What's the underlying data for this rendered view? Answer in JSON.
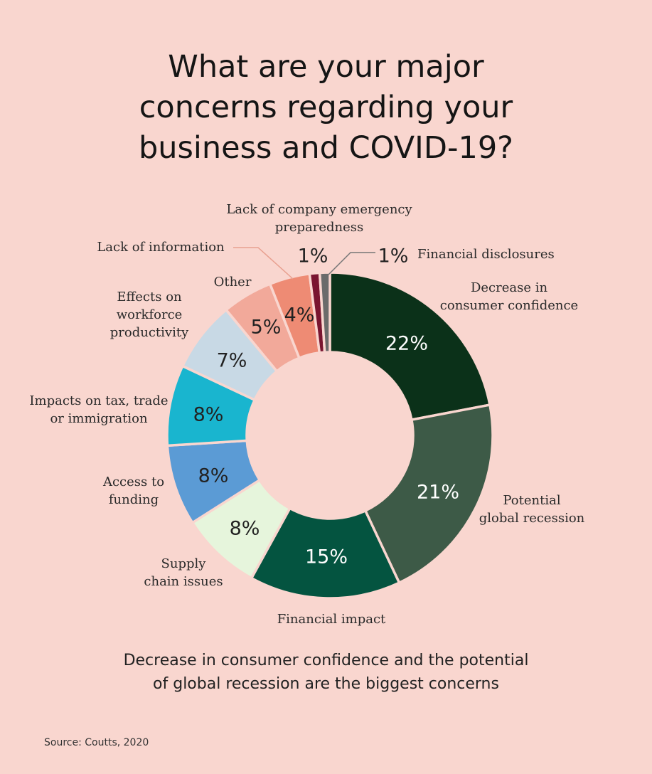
{
  "title_lines": [
    "What are your major",
    "concerns regarding your",
    "business and COVID-19?"
  ],
  "caption_lines": [
    "Decrease in consumer confidence and the potential",
    "of global recession are the biggest concerns"
  ],
  "source": "Source: Coutts, 2020",
  "colors": {
    "background": "#f9d6cf",
    "leader_line": "#e8a090",
    "leader_line_dark": "#777777"
  },
  "chart_data": {
    "type": "pie",
    "donut": true,
    "slices": [
      {
        "label_lines": [
          "Decrease in",
          "consumer confidence"
        ],
        "value": 22,
        "value_label": "22%",
        "color": "#0b3119",
        "text_color": "#ffffff"
      },
      {
        "label_lines": [
          "Potential",
          "global recession"
        ],
        "value": 21,
        "value_label": "21%",
        "color": "#3d5a47",
        "text_color": "#ffffff"
      },
      {
        "label_lines": [
          "Financial impact"
        ],
        "value": 15,
        "value_label": "15%",
        "color": "#045440",
        "text_color": "#ffffff"
      },
      {
        "label_lines": [
          "Supply",
          "chain issues"
        ],
        "value": 8,
        "value_label": "8%",
        "color": "#e6f5dc",
        "text_color": "#222222"
      },
      {
        "label_lines": [
          "Access to",
          "funding"
        ],
        "value": 8,
        "value_label": "8%",
        "color": "#5b9bd5",
        "text_color": "#222222"
      },
      {
        "label_lines": [
          "Impacts on tax, trade",
          "or immigration"
        ],
        "value": 8,
        "value_label": "8%",
        "color": "#19b5cf",
        "text_color": "#222222"
      },
      {
        "label_lines": [
          "Effects on",
          "workforce",
          "productivity"
        ],
        "value": 7,
        "value_label": "7%",
        "color": "#c8d9e5",
        "text_color": "#222222"
      },
      {
        "label_lines": [
          "Other"
        ],
        "value": 5,
        "value_label": "5%",
        "color": "#f2a99a",
        "text_color": "#222222"
      },
      {
        "label_lines": [
          "Lack of information"
        ],
        "value": 4,
        "value_label": "4%",
        "color": "#ee8b74",
        "text_color": "#222222"
      },
      {
        "label_lines": [
          "Lack of company emergency",
          "preparedness"
        ],
        "value": 1,
        "value_label": "1%",
        "color": "#7a1530",
        "text_color": "#222222"
      },
      {
        "label_lines": [
          "Financial disclosures"
        ],
        "value": 1,
        "value_label": "1%",
        "color": "#6b6b6b",
        "text_color": "#222222"
      }
    ]
  }
}
